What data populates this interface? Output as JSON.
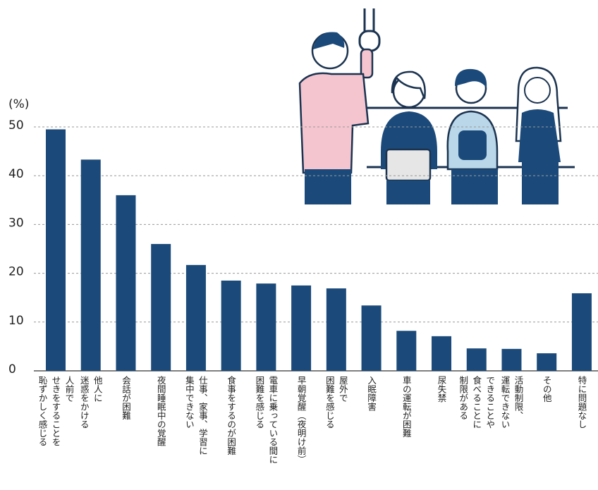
{
  "chart_data": {
    "type": "bar",
    "y_label": "(%)",
    "categories": [
      [
        "人前で",
        "せきをすることを",
        "恥ずかしく感じる"
      ],
      [
        "他人に",
        "迷惑をかける"
      ],
      [
        "会話が困難"
      ],
      [
        "夜間睡眠中の覚醒"
      ],
      [
        "仕事、家事、学習に",
        "集中できない"
      ],
      [
        "食事をするのが困難"
      ],
      [
        "電車に乗っている間に",
        "困難を感じる"
      ],
      [
        "早朝覚醒（夜明け前）"
      ],
      [
        "屋外で",
        "困難を感じる"
      ],
      [
        "入眠障害"
      ],
      [
        "車の運転が困難"
      ],
      [
        "尿失禁"
      ],
      [
        "できることや",
        "食べることに",
        "制限がある"
      ],
      [
        "活動制限、",
        "運転できない"
      ],
      [
        "その他"
      ],
      [
        "特に問題なし"
      ]
    ],
    "values": [
      49.5,
      43.3,
      36,
      26,
      21.7,
      18.5,
      17.9,
      17.5,
      16.9,
      13.4,
      8.2,
      7.1,
      4.6,
      4.5,
      3.6,
      15.9
    ],
    "color": "#1b4a7a",
    "ylim": [
      0,
      50
    ],
    "yticks": [
      0,
      10,
      20,
      30,
      40,
      50
    ],
    "grid": true
  }
}
